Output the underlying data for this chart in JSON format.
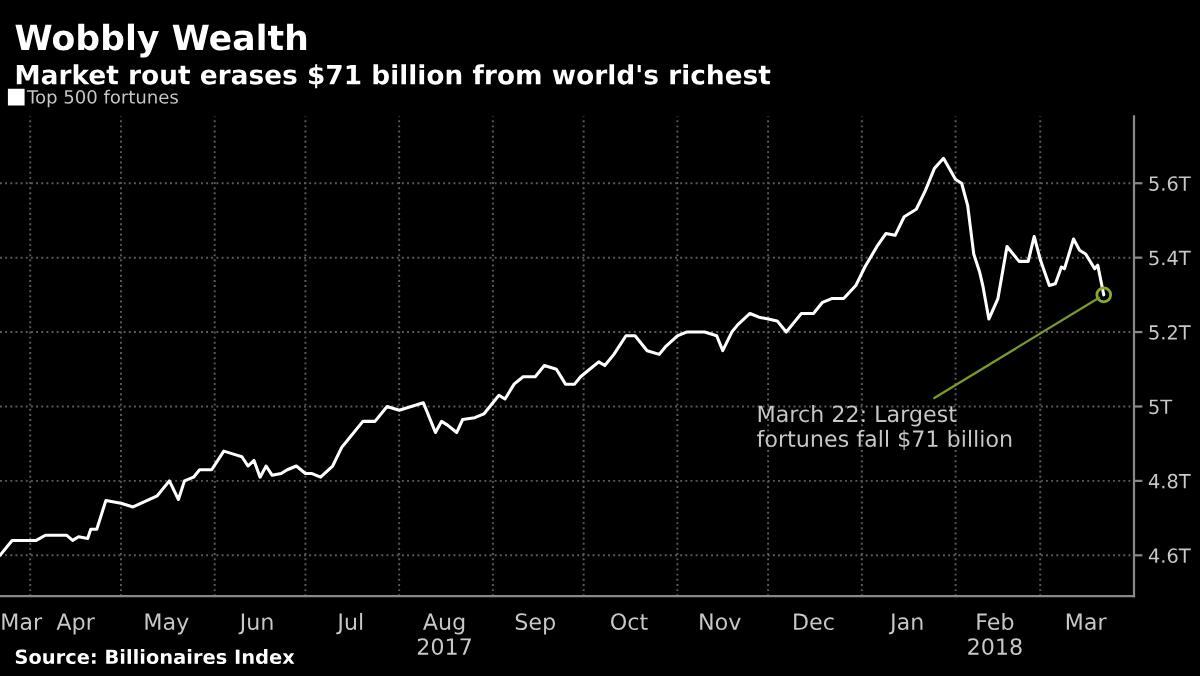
{
  "chart_data": {
    "type": "line",
    "title": "Wobbly Wealth",
    "subtitle": "Market rout erases $71 billion from world's richest",
    "x": [
      "2017-03-22",
      "2017-03-26",
      "2017-03-29",
      "2017-04-03",
      "2017-04-06",
      "2017-04-13",
      "2017-04-15",
      "2017-04-17",
      "2017-04-20",
      "2017-04-21",
      "2017-04-23",
      "2017-04-26",
      "2017-05-01",
      "2017-05-05",
      "2017-05-09",
      "2017-05-13",
      "2017-05-16",
      "2017-05-17",
      "2017-05-20",
      "2017-05-22",
      "2017-05-25",
      "2017-05-27",
      "2017-05-31",
      "2017-06-04",
      "2017-06-08",
      "2017-06-10",
      "2017-06-12",
      "2017-06-14",
      "2017-06-16",
      "2017-06-18",
      "2017-06-20",
      "2017-06-23",
      "2017-06-25",
      "2017-06-28",
      "2017-07-01",
      "2017-07-03",
      "2017-07-06",
      "2017-07-10",
      "2017-07-13",
      "2017-07-16",
      "2017-07-20",
      "2017-07-24",
      "2017-07-28",
      "2017-08-01",
      "2017-08-05",
      "2017-08-09",
      "2017-08-11",
      "2017-08-13",
      "2017-08-15",
      "2017-08-17",
      "2017-08-20",
      "2017-08-22",
      "2017-08-26",
      "2017-08-29",
      "2017-09-03",
      "2017-09-05",
      "2017-09-08",
      "2017-09-11",
      "2017-09-15",
      "2017-09-18",
      "2017-09-22",
      "2017-09-25",
      "2017-09-28",
      "2017-09-30",
      "2017-10-03",
      "2017-10-06",
      "2017-10-08",
      "2017-10-11",
      "2017-10-15",
      "2017-10-18",
      "2017-10-22",
      "2017-10-26",
      "2017-10-28",
      "2017-11-01",
      "2017-11-04",
      "2017-11-10",
      "2017-11-14",
      "2017-11-16",
      "2017-11-19",
      "2017-11-21",
      "2017-11-25",
      "2017-11-28",
      "2017-12-01",
      "2017-12-04",
      "2017-12-07",
      "2017-12-10",
      "2017-12-12",
      "2017-12-16",
      "2017-12-19",
      "2017-12-22",
      "2017-12-26",
      "2017-12-30",
      "2018-01-02",
      "2018-01-06",
      "2018-01-09",
      "2018-01-12",
      "2018-01-15",
      "2018-01-19",
      "2018-01-22",
      "2018-01-25",
      "2018-01-28",
      "2018-02-01",
      "2018-02-03",
      "2018-02-05",
      "2018-02-07",
      "2018-02-09",
      "2018-02-10",
      "2018-02-12",
      "2018-02-15",
      "2018-02-18",
      "2018-02-22",
      "2018-02-25",
      "2018-02-27",
      "2018-03-01",
      "2018-03-04",
      "2018-03-06",
      "2018-03-08",
      "2018-03-09",
      "2018-03-12",
      "2018-03-14",
      "2018-03-16",
      "2018-03-19",
      "2018-03-20",
      "2018-03-22"
    ],
    "series": [
      {
        "name": "Top 500 fortunes",
        "color": "#ffffff",
        "values": [
          4.6,
          4.64,
          4.64,
          4.64,
          4.654,
          4.654,
          4.64,
          4.65,
          4.645,
          4.67,
          4.67,
          4.747,
          4.74,
          4.73,
          4.745,
          4.76,
          4.79,
          4.8,
          4.75,
          4.8,
          4.81,
          4.83,
          4.83,
          4.88,
          4.87,
          4.865,
          4.84,
          4.855,
          4.81,
          4.84,
          4.815,
          4.82,
          4.83,
          4.84,
          4.82,
          4.82,
          4.81,
          4.84,
          4.89,
          4.92,
          4.96,
          4.96,
          5.0,
          4.99,
          5.0,
          5.01,
          4.97,
          4.93,
          4.96,
          4.95,
          4.93,
          4.965,
          4.97,
          4.98,
          5.03,
          5.02,
          5.06,
          5.08,
          5.08,
          5.11,
          5.1,
          5.06,
          5.06,
          5.08,
          5.1,
          5.12,
          5.11,
          5.14,
          5.19,
          5.19,
          5.15,
          5.14,
          5.16,
          5.19,
          5.2,
          5.2,
          5.19,
          5.15,
          5.2,
          5.22,
          5.25,
          5.24,
          5.235,
          5.23,
          5.2,
          5.23,
          5.25,
          5.25,
          5.28,
          5.29,
          5.29,
          5.325,
          5.375,
          5.43,
          5.465,
          5.46,
          5.51,
          5.53,
          5.58,
          5.64,
          5.667,
          5.61,
          5.6,
          5.54,
          5.41,
          5.36,
          5.325,
          5.235,
          5.29,
          5.43,
          5.39,
          5.39,
          5.457,
          5.395,
          5.325,
          5.33,
          5.375,
          5.37,
          5.45,
          5.42,
          5.41,
          5.37,
          5.38,
          5.3
        ]
      }
    ],
    "xlim": [
      "2017-03-22",
      "2018-04-01"
    ],
    "xticks": [
      {
        "value": "2017-03-29",
        "label": "Mar"
      },
      {
        "value": "2017-04-01",
        "label": null
      },
      {
        "value": "2017-04-16",
        "label": "Apr"
      },
      {
        "value": "2017-05-01",
        "label": null
      },
      {
        "value": "2017-05-16",
        "label": "May"
      },
      {
        "value": "2017-06-01",
        "label": null
      },
      {
        "value": "2017-06-15",
        "label": "Jun"
      },
      {
        "value": "2017-07-01",
        "label": null
      },
      {
        "value": "2017-07-16",
        "label": "Jul"
      },
      {
        "value": "2017-08-01",
        "label": null
      },
      {
        "value": "2017-08-16",
        "label": "Aug\n2017"
      },
      {
        "value": "2017-09-01",
        "label": null
      },
      {
        "value": "2017-09-15",
        "label": "Sep"
      },
      {
        "value": "2017-10-01",
        "label": null
      },
      {
        "value": "2017-10-16",
        "label": "Oct"
      },
      {
        "value": "2017-11-01",
        "label": null
      },
      {
        "value": "2017-11-15",
        "label": "Nov"
      },
      {
        "value": "2017-12-01",
        "label": null
      },
      {
        "value": "2017-12-16",
        "label": "Dec"
      },
      {
        "value": "2018-01-01",
        "label": null
      },
      {
        "value": "2018-01-16",
        "label": "Jan"
      },
      {
        "value": "2018-02-01",
        "label": null
      },
      {
        "value": "2018-02-14",
        "label": "Feb\n2018"
      },
      {
        "value": "2018-03-01",
        "label": null
      },
      {
        "value": "2018-03-16",
        "label": "Mar"
      }
    ],
    "ylim": [
      4.49,
      5.78
    ],
    "yticks": [
      {
        "value": 4.6,
        "label": "4.6T"
      },
      {
        "value": 4.8,
        "label": "4.8T"
      },
      {
        "value": 5.0,
        "label": "5T"
      },
      {
        "value": 5.2,
        "label": "5.2T"
      },
      {
        "value": 5.4,
        "label": "5.4T"
      },
      {
        "value": 5.6,
        "label": "5.6T"
      }
    ],
    "grid": true,
    "legend": "top left",
    "marker": "none",
    "line_style": "solid",
    "annotations": [
      {
        "text": "March 22: Largest\nfortunes fall $71 billion",
        "x": "2018-03-22",
        "y": 5.3
      },
      "Source: Billionaires Index"
    ]
  }
}
